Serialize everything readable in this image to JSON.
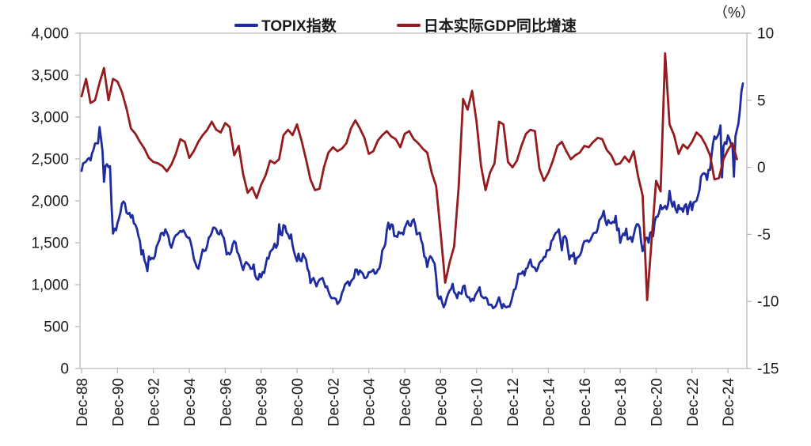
{
  "legend": [
    {
      "label": "TOPIX指数",
      "color": "#1F2C9F"
    },
    {
      "label": "日本实际GDP同比增速",
      "color": "#941B1E"
    }
  ],
  "chart_data": {
    "type": "line",
    "title": "",
    "right_axis_unit": "（%）",
    "left_axis": {
      "min": 0,
      "max": 4000,
      "ticks_bottom_to_top": [
        "0",
        "500",
        "1,000",
        "1,500",
        "2,000",
        "2,500",
        "3,000",
        "3,500",
        "4,000"
      ]
    },
    "right_axis": {
      "min": -15,
      "max": 10,
      "ticks_bottom_to_top": [
        "-15",
        "-10",
        "-5",
        "0",
        "5",
        "10"
      ],
      "unit": "（%）"
    },
    "x_axis": {
      "tick_labels": [
        "Dec-88",
        "Dec-90",
        "Dec-92",
        "Dec-94",
        "Dec-96",
        "Dec-98",
        "Dec-00",
        "Dec-02",
        "Dec-04",
        "Dec-06",
        "Dec-08",
        "Dec-10",
        "Dec-12",
        "Dec-14",
        "Dec-16",
        "Dec-18",
        "Dec-20",
        "Dec-22",
        "Dec-24"
      ],
      "tick_interval_years": 2
    },
    "series": [
      {
        "name": "TOPIX指数",
        "axis": "left",
        "color": "#1F2C9F",
        "start": "1988-12",
        "interval": "monthly",
        "values": [
          2357,
          2447,
          2457,
          2469,
          2497,
          2510,
          2482,
          2567,
          2611,
          2684,
          2688,
          2687,
          2881,
          2738,
          2597,
          2228,
          2417,
          2437,
          2403,
          2413,
          1950,
          1610,
          1670,
          1648,
          1734,
          1790,
          1864,
          1969,
          1992,
          1965,
          1861,
          1842,
          1857,
          1800,
          1829,
          1730,
          1715,
          1666,
          1580,
          1520,
          1360,
          1410,
          1296,
          1246,
          1160,
          1337,
          1300,
          1320,
          1308,
          1340,
          1450,
          1490,
          1530,
          1610,
          1620,
          1590,
          1660,
          1620,
          1580,
          1480,
          1440,
          1500,
          1560,
          1590,
          1600,
          1620,
          1640,
          1630,
          1650,
          1620,
          1580,
          1560,
          1560,
          1500,
          1420,
          1310,
          1260,
          1210,
          1190,
          1260,
          1340,
          1420,
          1400,
          1410,
          1470,
          1560,
          1580,
          1620,
          1680,
          1680,
          1660,
          1610,
          1600,
          1650,
          1590,
          1560,
          1470,
          1360,
          1380,
          1360,
          1390,
          1480,
          1520,
          1500,
          1390,
          1360,
          1300,
          1230,
          1175,
          1240,
          1270,
          1250,
          1230,
          1190,
          1190,
          1240,
          1110,
          1070,
          1060,
          1130,
          1087,
          1150,
          1140,
          1230,
          1320,
          1310,
          1390,
          1410,
          1430,
          1490,
          1440,
          1480,
          1722,
          1600,
          1590,
          1710,
          1700,
          1620,
          1600,
          1550,
          1600,
          1470,
          1390,
          1330,
          1280,
          1370,
          1290,
          1280,
          1370,
          1330,
          1300,
          1190,
          1150,
          1020,
          1060,
          1080,
          1030,
          980,
          1030,
          1060,
          1070,
          1080,
          1030,
          970,
          980,
          920,
          870,
          840,
          840,
          840,
          830,
          770,
          790,
          820,
          900,
          940,
          1000,
          1020,
          1040,
          990,
          1040,
          1060,
          1080,
          1180,
          1180,
          1120,
          1170,
          1150,
          1130,
          1080,
          1080,
          1100,
          1150,
          1150,
          1160,
          1180,
          1130,
          1140,
          1180,
          1190,
          1270,
          1410,
          1440,
          1480,
          1650,
          1740,
          1660,
          1720,
          1710,
          1580,
          1580,
          1570,
          1630,
          1610,
          1620,
          1600,
          1680,
          1720,
          1760,
          1710,
          1700,
          1760,
          1780,
          1710,
          1600,
          1610,
          1620,
          1530,
          1480,
          1340,
          1320,
          1210,
          1300,
          1340,
          1320,
          1280,
          1250,
          1090,
          870,
          830,
          860,
          790,
          730,
          770,
          840,
          890,
          930,
          950,
          1010,
          910,
          890,
          840,
          910,
          900,
          890,
          980,
          990,
          880,
          850,
          850,
          800,
          830,
          810,
          870,
          900,
          930,
          970,
          870,
          850,
          840,
          850,
          830,
          760,
          760,
          760,
          720,
          730,
          750,
          800,
          850,
          780,
          720,
          770,
          740,
          730,
          740,
          740,
          790,
          860,
          940,
          950,
          1030,
          1130,
          1130,
          1130,
          1160,
          1110,
          1190,
          1200,
          1260,
          1300,
          1220,
          1210,
          1200,
          1160,
          1200,
          1260,
          1280,
          1290,
          1330,
          1330,
          1410,
          1410,
          1420,
          1520,
          1540,
          1590,
          1620,
          1630,
          1660,
          1540,
          1410,
          1560,
          1580,
          1550,
          1430,
          1300,
          1350,
          1340,
          1380,
          1250,
          1320,
          1330,
          1350,
          1390,
          1470,
          1520,
          1520,
          1530,
          1510,
          1530,
          1570,
          1610,
          1620,
          1620,
          1670,
          1770,
          1790,
          1820,
          1880,
          1770,
          1710,
          1770,
          1740,
          1730,
          1750,
          1740,
          1820,
          1650,
          1670,
          1500,
          1570,
          1610,
          1590,
          1670,
          1540,
          1550,
          1570,
          1510,
          1590,
          1670,
          1720,
          1720,
          1680,
          1510,
          1400,
          1460,
          1560,
          1560,
          1500,
          1620,
          1630,
          1580,
          1750,
          1810,
          1810,
          1860,
          1950,
          1900,
          1920,
          1940,
          1900,
          1960,
          2120,
          2000,
          1930,
          1990,
          1900,
          1860,
          1950,
          1900,
          1910,
          1870,
          1940,
          1960,
          1840,
          1940,
          1990,
          1890,
          1980,
          1990,
          2000,
          2060,
          2130,
          2290,
          2320,
          2330,
          2320,
          2250,
          2370,
          2370,
          2530,
          2680,
          2770,
          2740,
          2770,
          2810,
          2900,
          2280,
          2650,
          2700,
          2680,
          2780,
          2740,
          2680,
          2660,
          2290,
          2770,
          2850,
          2920,
          3080,
          3300,
          3400
        ]
      },
      {
        "name": "日本实际GDP同比增速",
        "axis": "right",
        "color": "#941B1E",
        "start": "1988-Q4",
        "interval": "quarterly",
        "values": [
          5.3,
          6.6,
          4.8,
          5.0,
          6.3,
          7.4,
          5.0,
          6.6,
          6.4,
          5.6,
          4.4,
          2.9,
          2.5,
          1.9,
          1.4,
          0.7,
          0.4,
          0.3,
          0.1,
          -0.3,
          0.2,
          1.0,
          2.1,
          1.9,
          0.7,
          1.2,
          1.9,
          2.4,
          2.8,
          3.4,
          2.8,
          2.6,
          3.3,
          3.0,
          0.9,
          1.6,
          -0.5,
          -1.9,
          -1.5,
          -2.3,
          -1.3,
          -0.6,
          0.5,
          0.3,
          0.6,
          2.4,
          2.8,
          2.4,
          3.2,
          2.0,
          0.6,
          -0.9,
          -1.7,
          -1.6,
          0.0,
          1.1,
          1.5,
          1.2,
          1.4,
          1.8,
          2.9,
          3.5,
          2.9,
          2.2,
          1.0,
          1.2,
          2.0,
          2.4,
          2.7,
          2.3,
          2.1,
          1.5,
          2.5,
          2.7,
          2.1,
          1.8,
          1.4,
          1.1,
          -0.4,
          -1.4,
          -4.9,
          -8.6,
          -7.1,
          -5.9,
          -1.5,
          5.1,
          4.3,
          5.7,
          3.4,
          0.1,
          -1.7,
          -0.4,
          0.3,
          3.4,
          3.2,
          0.4,
          0.0,
          0.5,
          1.6,
          2.5,
          2.8,
          2.7,
          -0.1,
          -1.0,
          -0.4,
          0.5,
          1.6,
          1.9,
          1.2,
          0.6,
          0.9,
          1.1,
          1.6,
          1.5,
          1.9,
          2.2,
          2.1,
          1.3,
          0.9,
          0.2,
          0.3,
          0.8,
          0.4,
          1.2,
          -0.7,
          -2.1,
          -9.9,
          -5.4,
          -1.0,
          -1.8,
          8.5,
          3.2,
          2.4,
          1.0,
          1.7,
          1.4,
          1.9,
          2.6,
          2.3,
          1.7,
          0.9,
          -0.9,
          -0.8,
          0.6,
          1.3,
          1.8,
          0.6
        ]
      }
    ]
  }
}
